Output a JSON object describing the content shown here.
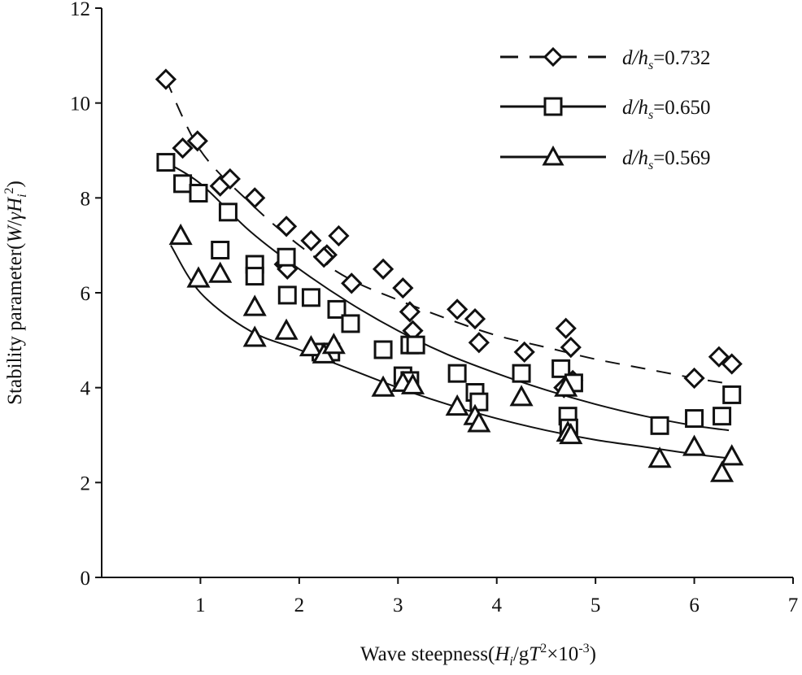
{
  "chart_data": {
    "type": "scatter",
    "xlabel": {
      "prefix": "Wave steepness(",
      "v1": "H",
      "v1_sub": "i",
      "mid": "/g",
      "v2": "T",
      "sup2": "2",
      "times": "×10",
      "sup3": "-3",
      "suffix": ")"
    },
    "ylabel": {
      "prefix": "Stability parameter(",
      "v1": "W",
      "mid": "/",
      "gamma": "γ",
      "v2": "H",
      "v2_sub": "i",
      "sup": "2",
      "suffix": ")"
    },
    "xlim": [
      0,
      7
    ],
    "ylim": [
      0,
      12
    ],
    "x_ticks": [
      "1",
      "2",
      "3",
      "4",
      "5",
      "6",
      "7"
    ],
    "y_ticks": [
      "0",
      "2",
      "4",
      "6",
      "8",
      "10",
      "12"
    ],
    "legend_position": "top-right",
    "series": [
      {
        "name": "d/hs=0.732",
        "label_var": "d/h",
        "label_sub": "s",
        "label_val": "=0.732",
        "marker": "diamond",
        "line": "dashed",
        "fit": {
          "x": [
            0.65,
            1.0,
            1.5,
            2.0,
            2.5,
            3.0,
            3.5,
            4.0,
            4.5,
            5.0,
            5.5,
            6.0,
            6.3
          ],
          "y": [
            10.5,
            9.0,
            7.9,
            7.0,
            6.3,
            5.85,
            5.45,
            5.1,
            4.85,
            4.6,
            4.4,
            4.2,
            4.1
          ]
        },
        "points": [
          [
            0.65,
            10.5
          ],
          [
            0.82,
            9.05
          ],
          [
            0.97,
            9.2
          ],
          [
            1.2,
            8.25
          ],
          [
            1.3,
            8.4
          ],
          [
            1.55,
            8.0
          ],
          [
            1.87,
            7.4
          ],
          [
            1.85,
            6.6
          ],
          [
            1.88,
            6.5
          ],
          [
            2.12,
            7.1
          ],
          [
            2.28,
            6.8
          ],
          [
            2.25,
            6.75
          ],
          [
            2.4,
            7.2
          ],
          [
            2.53,
            6.2
          ],
          [
            2.85,
            6.5
          ],
          [
            3.05,
            6.1
          ],
          [
            3.12,
            5.6
          ],
          [
            3.15,
            5.2
          ],
          [
            3.6,
            5.65
          ],
          [
            3.78,
            5.45
          ],
          [
            3.82,
            4.95
          ],
          [
            4.28,
            4.75
          ],
          [
            4.7,
            5.25
          ],
          [
            4.75,
            4.85
          ],
          [
            4.77,
            4.15
          ],
          [
            4.68,
            4.0
          ],
          [
            6.0,
            4.2
          ],
          [
            6.25,
            4.65
          ],
          [
            6.38,
            4.5
          ]
        ]
      },
      {
        "name": "d/hs=0.650",
        "label_var": "d/h",
        "label_sub": "s",
        "label_val": "=0.650",
        "marker": "square",
        "line": "solid",
        "fit": {
          "x": [
            0.65,
            1.0,
            1.5,
            2.0,
            2.5,
            3.0,
            3.5,
            4.0,
            4.5,
            5.0,
            5.5,
            6.0,
            6.35
          ],
          "y": [
            8.75,
            8.3,
            7.3,
            6.5,
            5.8,
            5.2,
            4.7,
            4.3,
            3.95,
            3.65,
            3.4,
            3.2,
            3.1
          ]
        },
        "points": [
          [
            0.65,
            8.75
          ],
          [
            0.82,
            8.3
          ],
          [
            0.98,
            8.1
          ],
          [
            1.28,
            7.7
          ],
          [
            1.2,
            6.9
          ],
          [
            1.55,
            6.6
          ],
          [
            1.55,
            6.35
          ],
          [
            1.87,
            6.75
          ],
          [
            1.88,
            5.95
          ],
          [
            2.12,
            5.9
          ],
          [
            2.22,
            4.75
          ],
          [
            2.32,
            4.75
          ],
          [
            2.38,
            5.65
          ],
          [
            2.52,
            5.35
          ],
          [
            2.85,
            4.8
          ],
          [
            3.05,
            4.25
          ],
          [
            3.12,
            4.15
          ],
          [
            3.12,
            4.9
          ],
          [
            3.18,
            4.9
          ],
          [
            3.6,
            4.3
          ],
          [
            3.78,
            3.9
          ],
          [
            3.82,
            3.7
          ],
          [
            4.25,
            4.3
          ],
          [
            4.65,
            4.4
          ],
          [
            4.72,
            3.4
          ],
          [
            4.73,
            3.15
          ],
          [
            4.78,
            4.1
          ],
          [
            5.65,
            3.2
          ],
          [
            6.0,
            3.35
          ],
          [
            6.28,
            3.4
          ],
          [
            6.38,
            3.85
          ]
        ]
      },
      {
        "name": "d/hs=0.569",
        "label_var": "d/h",
        "label_sub": "s",
        "label_val": "=0.569",
        "marker": "triangle",
        "line": "solid",
        "fit": {
          "x": [
            0.7,
            1.0,
            1.5,
            2.0,
            2.5,
            3.0,
            3.5,
            4.0,
            4.5,
            5.0,
            5.5,
            6.0,
            6.4
          ],
          "y": [
            7.0,
            6.0,
            5.2,
            4.8,
            4.4,
            4.0,
            3.65,
            3.35,
            3.1,
            2.9,
            2.75,
            2.6,
            2.5
          ]
        },
        "points": [
          [
            0.8,
            7.2
          ],
          [
            0.98,
            6.3
          ],
          [
            1.2,
            6.4
          ],
          [
            1.55,
            5.7
          ],
          [
            1.55,
            5.05
          ],
          [
            1.87,
            5.2
          ],
          [
            2.12,
            4.85
          ],
          [
            2.25,
            4.7
          ],
          [
            2.35,
            4.9
          ],
          [
            2.85,
            4.0
          ],
          [
            3.05,
            4.1
          ],
          [
            3.15,
            4.05
          ],
          [
            3.6,
            3.6
          ],
          [
            3.78,
            3.4
          ],
          [
            3.82,
            3.25
          ],
          [
            4.25,
            3.8
          ],
          [
            4.7,
            4.0
          ],
          [
            4.72,
            3.05
          ],
          [
            4.75,
            3.0
          ],
          [
            5.65,
            2.5
          ],
          [
            6.0,
            2.75
          ],
          [
            6.28,
            2.2
          ],
          [
            6.38,
            2.55
          ]
        ]
      }
    ]
  }
}
